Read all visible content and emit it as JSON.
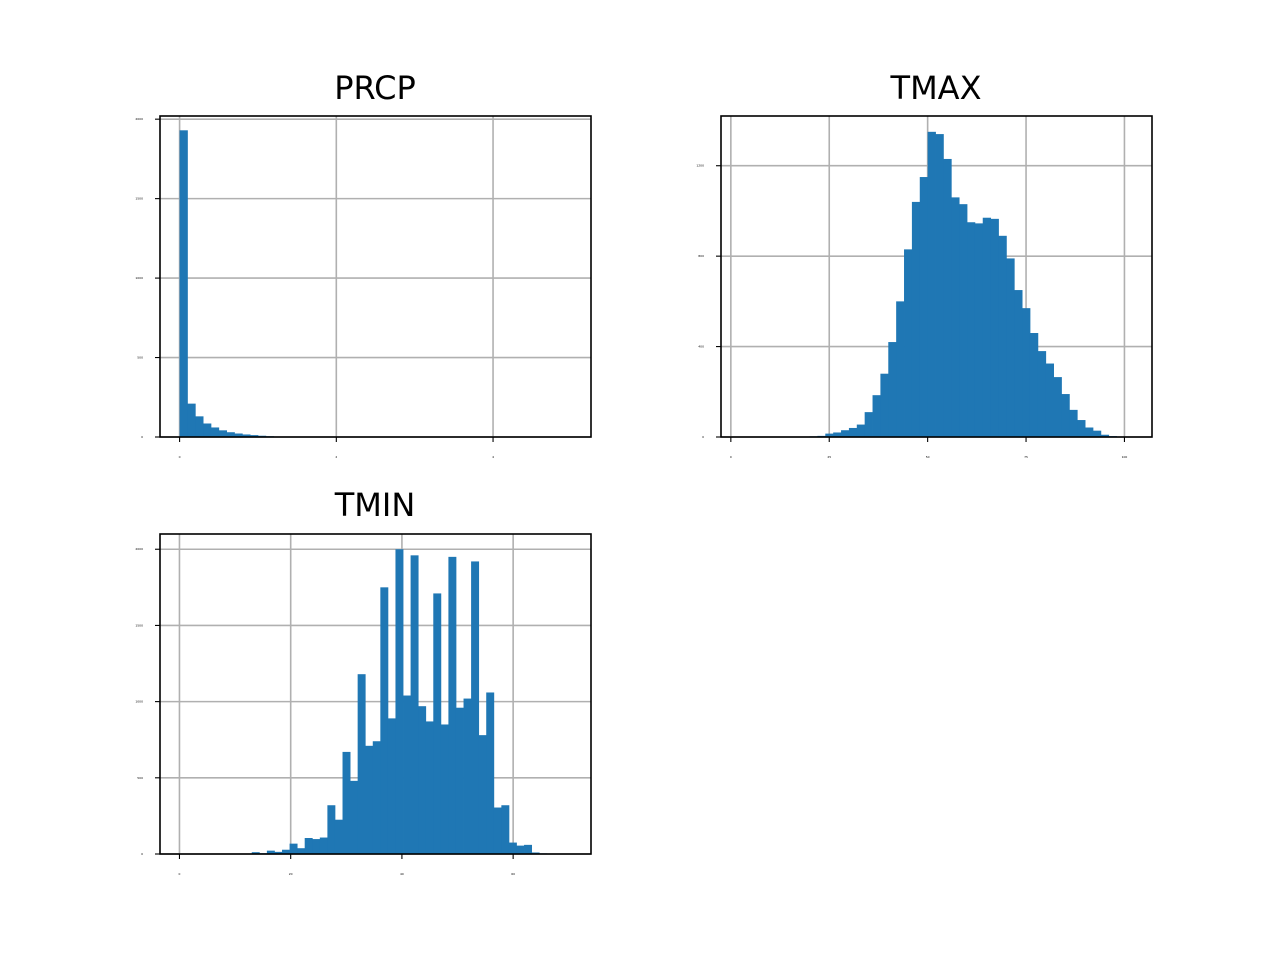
{
  "colors": {
    "bar": "#1f77b4",
    "grid": "#b0b0b0",
    "frame": "#000000"
  },
  "chart_data": [
    {
      "type": "bar",
      "title": "PRCP",
      "grid": true,
      "xlim": [
        -0.25,
        5.25
      ],
      "ylim": [
        0,
        2020
      ],
      "xticks": [
        0,
        2,
        4
      ],
      "xtick_labels": [
        "0",
        "2",
        "4"
      ],
      "yticks": [
        0,
        500,
        1000,
        1500,
        2000
      ],
      "ytick_labels": [
        "0",
        "500",
        "1000",
        "1500",
        "2000"
      ],
      "bin_start": 0.0,
      "bin_width": 0.1,
      "values": [
        1930,
        210,
        130,
        85,
        60,
        42,
        30,
        22,
        16,
        12,
        8,
        5,
        3,
        2,
        1
      ]
    },
    {
      "type": "bar",
      "title": "TMAX",
      "grid": true,
      "xlim": [
        -2.5,
        107
      ],
      "ylim": [
        0,
        1420
      ],
      "xticks": [
        0,
        25,
        50,
        75,
        100
      ],
      "xtick_labels": [
        "0",
        "25",
        "50",
        "75",
        "100"
      ],
      "yticks": [
        0,
        400,
        800,
        1200
      ],
      "ytick_labels": [
        "0",
        "400",
        "800",
        "1200"
      ],
      "bin_start": 20.0,
      "bin_width": 2.0,
      "values": [
        3,
        5,
        15,
        20,
        30,
        40,
        55,
        110,
        185,
        280,
        420,
        600,
        830,
        1040,
        1150,
        1350,
        1340,
        1230,
        1060,
        1030,
        950,
        945,
        970,
        965,
        890,
        790,
        650,
        570,
        460,
        380,
        325,
        265,
        190,
        120,
        75,
        42,
        28,
        10,
        4
      ]
    },
    {
      "type": "bar",
      "title": "TMIN",
      "grid": true,
      "xlim": [
        -3.5,
        74
      ],
      "ylim": [
        0,
        2100
      ],
      "xticks": [
        0,
        20,
        40,
        60
      ],
      "xtick_labels": [
        "0",
        "20",
        "40",
        "60"
      ],
      "yticks": [
        0,
        500,
        1000,
        1500,
        2000
      ],
      "ytick_labels": [
        "0",
        "500",
        "1000",
        "1500",
        "2000"
      ],
      "bin_start": 13.0,
      "bin_width": 1.36,
      "values": [
        12,
        5,
        22,
        14,
        28,
        68,
        38,
        105,
        98,
        108,
        320,
        225,
        670,
        480,
        1180,
        710,
        740,
        1750,
        890,
        2000,
        1040,
        1960,
        970,
        870,
        1710,
        850,
        1950,
        960,
        1020,
        1920,
        780,
        1060,
        305,
        320,
        75,
        55,
        60,
        10,
        4
      ]
    }
  ]
}
